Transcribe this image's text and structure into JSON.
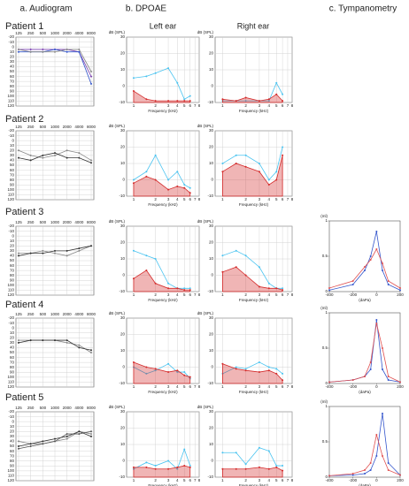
{
  "headers": [
    "a. Audiogram",
    "b. DPOAE",
    "c. Tympanometry"
  ],
  "ears": [
    "Left ear",
    "Right ear"
  ],
  "patients": [
    "Patient 1",
    "Patient 2",
    "Patient 3",
    "Patient 4",
    "Patient 5"
  ],
  "chart_data": [
    {
      "type": "line",
      "categories": [
        "125",
        "250",
        "500",
        "1000",
        "2000",
        "4000",
        "8000"
      ],
      "ylim": [
        -20,
        120
      ],
      "y_inverted": true,
      "yticks": [
        -20,
        -10,
        0,
        10,
        20,
        30,
        40,
        50,
        60,
        70,
        80,
        90,
        100,
        110,
        120
      ],
      "grid": true,
      "series": [
        {
          "color": "#7a3fb0",
          "values": [
            5,
            5,
            5,
            5,
            5,
            10,
            60
          ]
        },
        {
          "color": "#3355cc",
          "values": [
            10,
            10,
            10,
            5,
            10,
            10,
            75
          ]
        },
        {
          "color": "#888888",
          "values": [
            5,
            10,
            10,
            10,
            5,
            5,
            50
          ]
        }
      ]
    },
    {
      "type": "line",
      "x": [
        1,
        1.5,
        2,
        3,
        4,
        5,
        6
      ],
      "xlim": [
        0.8,
        8
      ],
      "log_x": true,
      "xticks": [
        1,
        2,
        3,
        4,
        5,
        6,
        7,
        8
      ],
      "ylim": [
        -10,
        30
      ],
      "yticks": [
        -10,
        0,
        10,
        20,
        30
      ],
      "grid": true,
      "xlabel": "Frequency (kHz)",
      "ylabel": "dB (SPL)",
      "series": [
        {
          "color": "#49c3f0",
          "values": [
            5,
            6,
            8,
            11,
            2,
            -8,
            -6
          ]
        },
        {
          "color": "#d42a2a",
          "area": true,
          "values": [
            -3,
            -8,
            -9,
            -9,
            -9,
            -9,
            -9
          ]
        }
      ]
    },
    {
      "type": "line",
      "x": [
        1,
        1.5,
        2,
        3,
        4,
        5,
        6
      ],
      "xlim": [
        0.8,
        8
      ],
      "log_x": true,
      "xticks": [
        1,
        2,
        3,
        4,
        5,
        6,
        7,
        8
      ],
      "ylim": [
        -10,
        30
      ],
      "yticks": [
        -10,
        0,
        10,
        20,
        30
      ],
      "grid": true,
      "xlabel": "Frequency (kHz)",
      "ylabel": "dB (SPL)",
      "series": [
        {
          "color": "#49c3f0",
          "values": [
            -9,
            -9,
            -9,
            -9,
            -9,
            2,
            -5
          ]
        },
        {
          "color": "#d42a2a",
          "area": true,
          "values": [
            -8,
            -9,
            -7,
            -9,
            -8,
            -5,
            -9
          ]
        }
      ]
    },
    {
      "type": "line",
      "categories": [
        "125",
        "250",
        "500",
        "1000",
        "2000",
        "4000",
        "8000"
      ],
      "ylim": [
        -20,
        120
      ],
      "y_inverted": true,
      "yticks": [
        -20,
        -10,
        0,
        10,
        20,
        30,
        40,
        50,
        60,
        70,
        80,
        90,
        100,
        110,
        120
      ],
      "grid": true,
      "series": [
        {
          "color": "#888888",
          "values": [
            20,
            30,
            35,
            30,
            20,
            25,
            40
          ]
        },
        {
          "color": "#333333",
          "values": [
            35,
            40,
            30,
            25,
            35,
            35,
            45
          ]
        }
      ]
    },
    {
      "type": "line",
      "x": [
        1,
        1.5,
        2,
        3,
        4,
        5,
        6
      ],
      "xlim": [
        0.8,
        8
      ],
      "log_x": true,
      "xticks": [
        1,
        2,
        3,
        4,
        5,
        6,
        7,
        8
      ],
      "ylim": [
        -10,
        30
      ],
      "yticks": [
        -10,
        0,
        10,
        20,
        30
      ],
      "grid": true,
      "xlabel": "Frequency (kHz)",
      "ylabel": "dB (SPL)",
      "series": [
        {
          "color": "#49c3f0",
          "values": [
            0,
            5,
            15,
            0,
            5,
            -3,
            -5
          ]
        },
        {
          "color": "#d42a2a",
          "area": true,
          "values": [
            -2,
            2,
            0,
            -6,
            -4,
            -5,
            -8
          ]
        }
      ]
    },
    {
      "type": "line",
      "x": [
        1,
        1.5,
        2,
        3,
        4,
        5,
        6
      ],
      "xlim": [
        0.8,
        8
      ],
      "log_x": true,
      "xticks": [
        1,
        2,
        3,
        4,
        5,
        6,
        7,
        8
      ],
      "ylim": [
        -10,
        30
      ],
      "yticks": [
        -10,
        0,
        10,
        20,
        30
      ],
      "grid": true,
      "xlabel": "Frequency (kHz)",
      "ylabel": "dB (SPL)",
      "series": [
        {
          "color": "#49c3f0",
          "values": [
            10,
            15,
            15,
            10,
            0,
            5,
            20
          ]
        },
        {
          "color": "#d42a2a",
          "area": true,
          "values": [
            5,
            10,
            8,
            5,
            -3,
            0,
            15
          ]
        }
      ]
    },
    {
      "type": "line",
      "categories": [
        "125",
        "250",
        "500",
        "1000",
        "2000",
        "4000",
        "8000"
      ],
      "ylim": [
        -20,
        120
      ],
      "y_inverted": true,
      "yticks": [
        -20,
        -10,
        0,
        10,
        20,
        30,
        40,
        50,
        60,
        70,
        80,
        90,
        100,
        110,
        120
      ],
      "grid": true,
      "series": [
        {
          "color": "#888888",
          "values": [
            35,
            35,
            30,
            35,
            40,
            30,
            20
          ]
        },
        {
          "color": "#333333",
          "values": [
            40,
            35,
            35,
            30,
            30,
            25,
            20
          ]
        }
      ]
    },
    {
      "type": "line",
      "x": [
        1,
        1.5,
        2,
        3,
        4,
        5,
        6
      ],
      "xlim": [
        0.8,
        8
      ],
      "log_x": true,
      "xticks": [
        1,
        2,
        3,
        4,
        5,
        6,
        7,
        8
      ],
      "ylim": [
        -10,
        30
      ],
      "yticks": [
        -10,
        0,
        10,
        20,
        30
      ],
      "grid": true,
      "xlabel": "Frequency (kHz)",
      "ylabel": "dB (SPL)",
      "series": [
        {
          "color": "#49c3f0",
          "values": [
            15,
            12,
            10,
            -5,
            -8,
            -8,
            -8
          ]
        },
        {
          "color": "#d42a2a",
          "area": true,
          "values": [
            -2,
            3,
            -5,
            -8,
            -8,
            -9,
            -9
          ]
        }
      ]
    },
    {
      "type": "line",
      "x": [
        1,
        1.5,
        2,
        3,
        4,
        5,
        6
      ],
      "xlim": [
        0.8,
        8
      ],
      "log_x": true,
      "xticks": [
        1,
        2,
        3,
        4,
        5,
        6,
        7,
        8
      ],
      "ylim": [
        -10,
        30
      ],
      "yticks": [
        -10,
        0,
        10,
        20,
        30
      ],
      "grid": true,
      "xlabel": "Frequency (kHz)",
      "ylabel": "dB (SPL)",
      "series": [
        {
          "color": "#49c3f0",
          "values": [
            12,
            15,
            12,
            5,
            -5,
            -8,
            -8
          ]
        },
        {
          "color": "#d42a2a",
          "area": true,
          "values": [
            2,
            5,
            0,
            -7,
            -8,
            -8,
            -9
          ]
        }
      ]
    },
    {
      "type": "line",
      "x": [
        -400,
        -200,
        -100,
        -50,
        0,
        50,
        100,
        200
      ],
      "xlim": [
        -400,
        200
      ],
      "xticks": [
        -400,
        -200,
        0,
        200
      ],
      "ylim": [
        0,
        1
      ],
      "yticks": [
        0,
        0.5,
        1
      ],
      "grid": false,
      "xlabel": "(daPa)",
      "ylabel": "(ml)",
      "series": [
        {
          "color": "#3355cc",
          "values": [
            0.02,
            0.1,
            0.3,
            0.5,
            0.85,
            0.3,
            0.1,
            0.02
          ]
        },
        {
          "color": "#e05050",
          "values": [
            0.05,
            0.15,
            0.35,
            0.45,
            0.6,
            0.4,
            0.15,
            0.05
          ]
        }
      ]
    },
    {
      "type": "line",
      "categories": [
        "125",
        "250",
        "500",
        "1000",
        "2000",
        "4000",
        "8000"
      ],
      "ylim": [
        -20,
        120
      ],
      "y_inverted": true,
      "yticks": [
        -20,
        -10,
        0,
        10,
        20,
        30,
        40,
        50,
        60,
        70,
        80,
        90,
        100,
        110,
        120
      ],
      "grid": true,
      "series": [
        {
          "color": "#888888",
          "values": [
            25,
            25,
            25,
            25,
            30,
            35,
            50
          ]
        },
        {
          "color": "#333333",
          "values": [
            30,
            25,
            25,
            25,
            25,
            40,
            45
          ]
        }
      ]
    },
    {
      "type": "line",
      "x": [
        1,
        1.5,
        2,
        3,
        4,
        5,
        6
      ],
      "xlim": [
        0.8,
        8
      ],
      "log_x": true,
      "xticks": [
        1,
        2,
        3,
        4,
        5,
        6,
        7,
        8
      ],
      "ylim": [
        -10,
        30
      ],
      "yticks": [
        -10,
        0,
        10,
        20,
        30
      ],
      "grid": true,
      "xlabel": "Frequency (kHz)",
      "ylabel": "dB (SPL)",
      "series": [
        {
          "color": "#49c3f0",
          "values": [
            0,
            -4,
            -2,
            2,
            -3,
            -3,
            -7
          ]
        },
        {
          "color": "#d42a2a",
          "area": true,
          "values": [
            3,
            0,
            -1,
            -3,
            -2,
            -5,
            -6
          ]
        }
      ]
    },
    {
      "type": "line",
      "x": [
        1,
        1.5,
        2,
        3,
        4,
        5,
        6
      ],
      "xlim": [
        0.8,
        8
      ],
      "log_x": true,
      "xticks": [
        1,
        2,
        3,
        4,
        5,
        6,
        7,
        8
      ],
      "ylim": [
        -10,
        30
      ],
      "yticks": [
        -10,
        0,
        10,
        20,
        30
      ],
      "grid": true,
      "xlabel": "Frequency (kHz)",
      "ylabel": "dB (SPL)",
      "series": [
        {
          "color": "#49c3f0",
          "values": [
            -4,
            0,
            -1,
            3,
            0,
            -1,
            -4
          ]
        },
        {
          "color": "#d42a2a",
          "area": true,
          "values": [
            2,
            -1,
            -2,
            -3,
            -2,
            -4,
            -8
          ]
        }
      ]
    },
    {
      "type": "line",
      "x": [
        -400,
        -200,
        -100,
        -50,
        0,
        50,
        100,
        200
      ],
      "xlim": [
        -400,
        200
      ],
      "xticks": [
        -400,
        -200,
        0,
        200
      ],
      "ylim": [
        0,
        1
      ],
      "yticks": [
        0,
        0.5,
        1
      ],
      "grid": false,
      "xlabel": "(daPa)",
      "ylabel": "(ml)",
      "series": [
        {
          "color": "#3355cc",
          "values": [
            0.02,
            0.05,
            0.1,
            0.2,
            0.9,
            0.2,
            0.05,
            0.02
          ]
        },
        {
          "color": "#e05050",
          "values": [
            0.02,
            0.05,
            0.1,
            0.3,
            0.85,
            0.5,
            0.1,
            0.02
          ]
        }
      ]
    },
    {
      "type": "line",
      "categories": [
        "125",
        "250",
        "500",
        "1000",
        "2000",
        "4000",
        "8000"
      ],
      "ylim": [
        -20,
        120
      ],
      "y_inverted": true,
      "yticks": [
        -20,
        -10,
        0,
        10,
        20,
        30,
        40,
        50,
        60,
        70,
        80,
        90,
        100,
        110,
        120
      ],
      "grid": true,
      "series": [
        {
          "color": "#888888",
          "values": [
            40,
            45,
            45,
            40,
            35,
            20,
            25
          ]
        },
        {
          "color": "#333333",
          "values": [
            50,
            45,
            40,
            35,
            30,
            20,
            30
          ]
        },
        {
          "color": "#555555",
          "values": [
            55,
            50,
            45,
            40,
            25,
            25,
            20
          ]
        }
      ]
    },
    {
      "type": "line",
      "x": [
        1,
        1.5,
        2,
        3,
        4,
        5,
        6
      ],
      "xlim": [
        0.8,
        8
      ],
      "log_x": true,
      "xticks": [
        1,
        2,
        3,
        4,
        5,
        6,
        7,
        8
      ],
      "ylim": [
        -10,
        30
      ],
      "yticks": [
        -10,
        0,
        10,
        20,
        30
      ],
      "grid": true,
      "xlabel": "Frequency (kHz)",
      "ylabel": "dB (SPL)",
      "series": [
        {
          "color": "#49c3f0",
          "values": [
            -5,
            -1,
            -3,
            0,
            -5,
            7,
            -3
          ]
        },
        {
          "color": "#d42a2a",
          "area": true,
          "values": [
            -4,
            -4,
            -5,
            -5,
            -4,
            -3,
            -4
          ]
        }
      ]
    },
    {
      "type": "line",
      "x": [
        1,
        1.5,
        2,
        3,
        4,
        5,
        6
      ],
      "xlim": [
        0.8,
        8
      ],
      "log_x": true,
      "xticks": [
        1,
        2,
        3,
        4,
        5,
        6,
        7,
        8
      ],
      "ylim": [
        -10,
        30
      ],
      "yticks": [
        -10,
        0,
        10,
        20,
        30
      ],
      "grid": true,
      "xlabel": "Frequency (kHz)",
      "ylabel": "dB (SPL)",
      "series": [
        {
          "color": "#49c3f0",
          "values": [
            5,
            5,
            -2,
            8,
            6,
            -3,
            -3
          ]
        },
        {
          "color": "#d42a2a",
          "area": true,
          "values": [
            -5,
            -5,
            -5,
            -4,
            -5,
            -4,
            -6
          ]
        }
      ]
    },
    {
      "type": "line",
      "x": [
        -400,
        -200,
        -100,
        -50,
        0,
        50,
        100,
        200
      ],
      "xlim": [
        -400,
        200
      ],
      "xticks": [
        -400,
        -200,
        0,
        200
      ],
      "ylim": [
        0,
        1
      ],
      "yticks": [
        0,
        0.5,
        1
      ],
      "grid": false,
      "xlabel": "(daPa)",
      "ylabel": "(ml)",
      "series": [
        {
          "color": "#3355cc",
          "values": [
            0.02,
            0.03,
            0.05,
            0.1,
            0.3,
            0.9,
            0.2,
            0.03
          ]
        },
        {
          "color": "#e05050",
          "values": [
            0.02,
            0.05,
            0.1,
            0.2,
            0.6,
            0.3,
            0.1,
            0.03
          ]
        }
      ]
    }
  ]
}
